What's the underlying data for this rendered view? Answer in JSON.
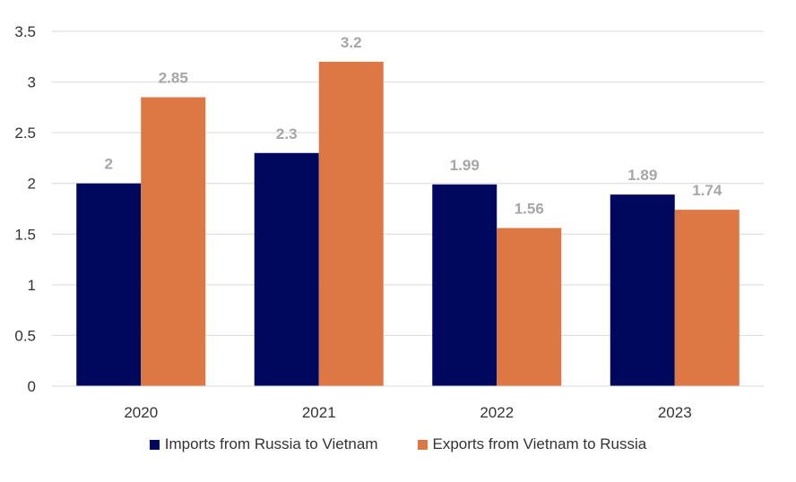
{
  "chart_data": {
    "type": "bar",
    "categories": [
      "2020",
      "2021",
      "2022",
      "2023"
    ],
    "series": [
      {
        "name": "Imports from Russia to Vietnam",
        "values": [
          2,
          2.3,
          1.99,
          1.89
        ],
        "labels": [
          "2",
          "2.3",
          "1.99",
          "1.89"
        ],
        "color": "#00085e"
      },
      {
        "name": "Exports from Vietnam to Russia",
        "values": [
          2.85,
          3.2,
          1.56,
          1.74
        ],
        "labels": [
          "2.85",
          "3.2",
          "1.56",
          "1.74"
        ],
        "color": "#dd7744"
      }
    ],
    "yticks": [
      "0",
      "0.5",
      "1",
      "1.5",
      "2",
      "2.5",
      "3",
      "3.5"
    ],
    "ylim": [
      0,
      3.5
    ],
    "grid": true,
    "legend_position": "bottom"
  }
}
